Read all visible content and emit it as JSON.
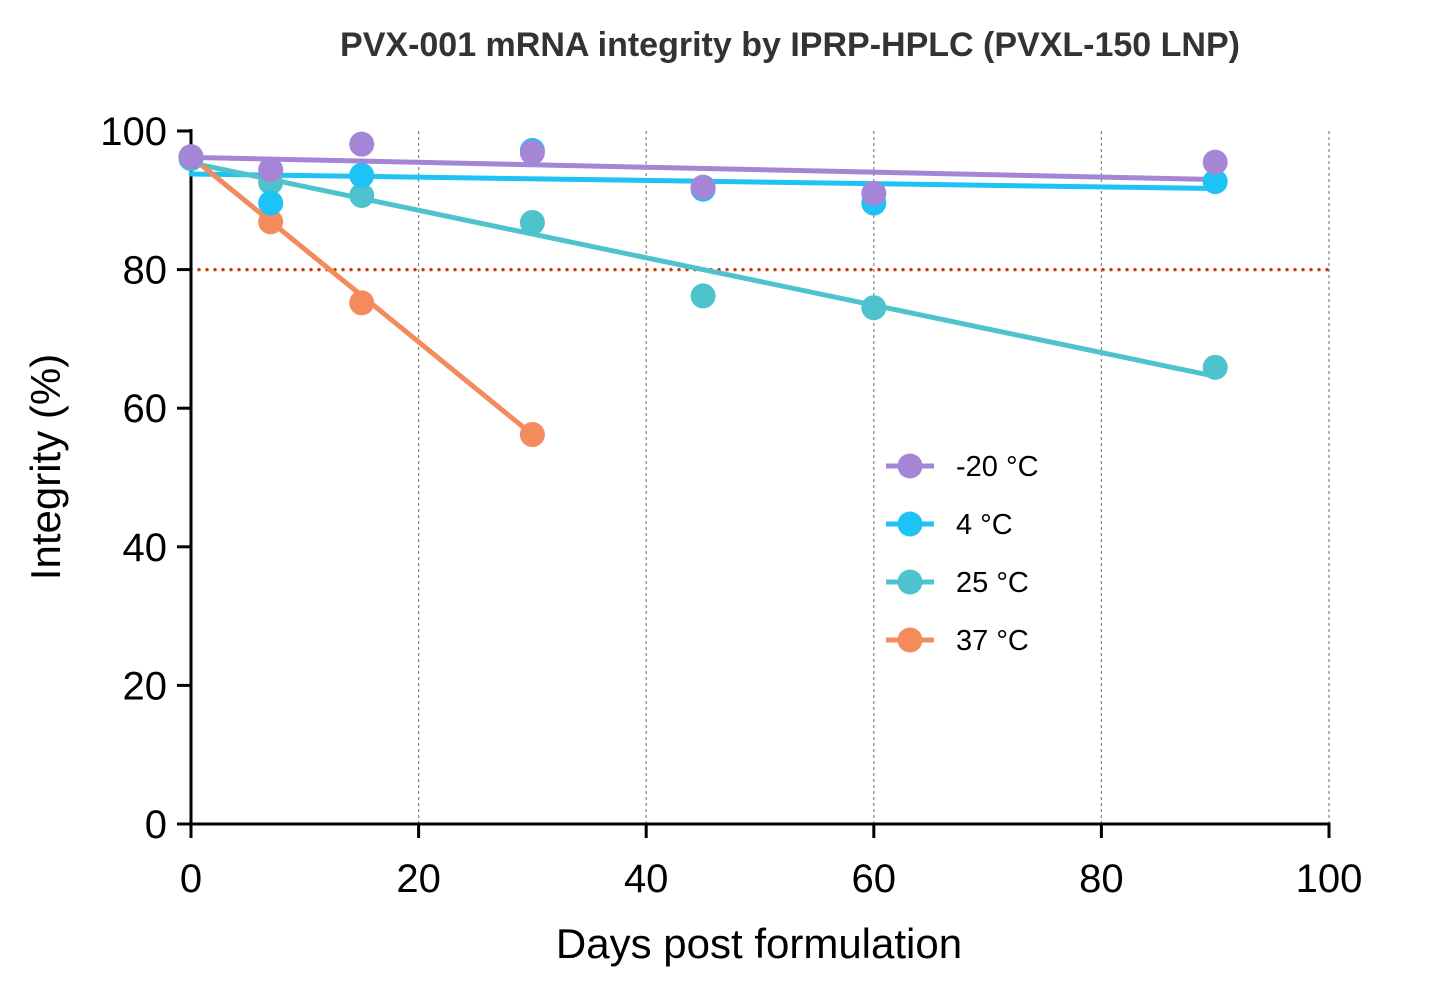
{
  "chart_data": {
    "type": "scatter",
    "title": "PVX-001 mRNA integrity by IPRP-HPLC (PVXL-150 LNP)",
    "xlabel": "Days post formulation",
    "ylabel": "Integrity (%)",
    "xlim": [
      0,
      100
    ],
    "ylim": [
      0,
      100
    ],
    "xticks": [
      0,
      20,
      40,
      60,
      80,
      100
    ],
    "yticks": [
      0,
      20,
      40,
      60,
      80,
      100
    ],
    "x_gridlines": [
      20,
      40,
      60,
      80,
      100
    ],
    "threshold": {
      "y": 80,
      "color": "#c8400f",
      "style": "dotted"
    },
    "legend_position": "center-right",
    "series": [
      {
        "name": "-20 °C",
        "color": "#a585d6",
        "points": [
          [
            0,
            96.3
          ],
          [
            7,
            94.4
          ],
          [
            15,
            98.1
          ],
          [
            30,
            96.9
          ],
          [
            45,
            91.9
          ],
          [
            60,
            91.0
          ],
          [
            90,
            95.5
          ]
        ],
        "fit": [
          [
            0,
            96.2
          ],
          [
            90,
            93.0
          ]
        ]
      },
      {
        "name": "4 °C",
        "color": "#1ec3f5",
        "points": [
          [
            0,
            96.2
          ],
          [
            7,
            89.6
          ],
          [
            15,
            93.6
          ],
          [
            30,
            97.2
          ],
          [
            45,
            91.6
          ],
          [
            60,
            89.6
          ],
          [
            90,
            92.7
          ]
        ],
        "fit": [
          [
            0,
            93.8
          ],
          [
            90,
            91.7
          ]
        ]
      },
      {
        "name": "25 °C",
        "color": "#4fc3cd",
        "points": [
          [
            0,
            96.0
          ],
          [
            7,
            92.6
          ],
          [
            15,
            90.7
          ],
          [
            30,
            86.8
          ],
          [
            45,
            76.2
          ],
          [
            60,
            74.5
          ],
          [
            90,
            65.9
          ]
        ],
        "fit": [
          [
            0,
            95.4
          ],
          [
            90,
            64.6
          ]
        ]
      },
      {
        "name": "37 °C",
        "color": "#f48b5d",
        "points": [
          [
            0,
            96.1
          ],
          [
            7,
            86.9
          ],
          [
            15,
            75.2
          ],
          [
            30,
            56.2
          ]
        ],
        "fit": [
          [
            0,
            96.3
          ],
          [
            30,
            56.2
          ]
        ]
      }
    ]
  }
}
